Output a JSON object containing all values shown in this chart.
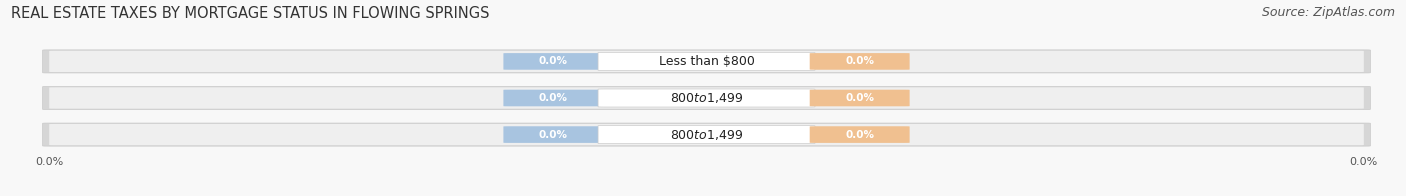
{
  "title": "REAL ESTATE TAXES BY MORTGAGE STATUS IN FLOWING SPRINGS",
  "source": "Source: ZipAtlas.com",
  "categories": [
    "Less than $800",
    "$800 to $1,499",
    "$800 to $1,499"
  ],
  "without_mortgage": [
    0.0,
    0.0,
    0.0
  ],
  "with_mortgage": [
    0.0,
    0.0,
    0.0
  ],
  "without_color": "#a8c4e0",
  "with_color": "#f0c090",
  "bar_outer_color": "#d6d6d6",
  "bar_inner_color": "#efefef",
  "label_bg_color": "#ffffff",
  "label_border_color": "#cccccc",
  "title_fontsize": 10.5,
  "source_fontsize": 9,
  "legend_fontsize": 8.5,
  "value_fontsize": 7.5,
  "cat_fontsize": 9,
  "tick_fontsize": 8,
  "figsize": [
    14.06,
    1.96
  ],
  "dpi": 100,
  "fig_bg": "#f8f8f8",
  "title_color": "#333333",
  "source_color": "#555555",
  "tick_label": "0.0%"
}
